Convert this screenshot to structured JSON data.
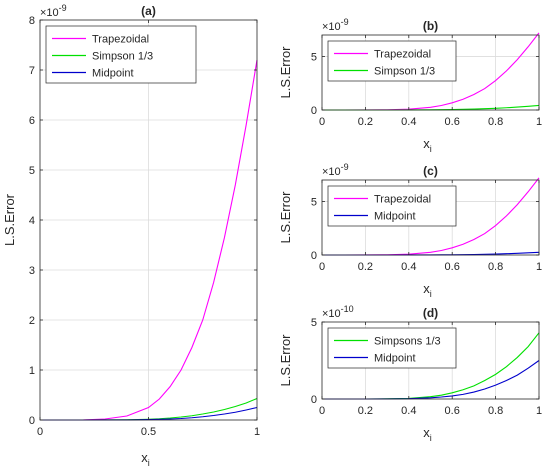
{
  "chart_data": [
    {
      "type": "line",
      "title": "(a)",
      "xlabel": "x",
      "xlabel_sub": "i",
      "ylabel": "L.S.Error",
      "exponent_label": "×10",
      "exponent_power": "-9",
      "xlim": [
        0,
        1
      ],
      "ylim": [
        0,
        8
      ],
      "x_ticks": [
        0,
        0.5,
        1
      ],
      "x_tick_labels": [
        "0",
        "0.5",
        "1"
      ],
      "y_ticks": [
        0,
        1,
        2,
        3,
        4,
        5,
        6,
        7,
        8
      ],
      "y_tick_labels": [
        "0",
        "1",
        "2",
        "3",
        "4",
        "5",
        "6",
        "7",
        "8"
      ],
      "grid": true,
      "legend_position": "top-left",
      "x": [
        0,
        0.1,
        0.2,
        0.3,
        0.4,
        0.5,
        0.55,
        0.6,
        0.65,
        0.7,
        0.75,
        0.8,
        0.85,
        0.9,
        0.95,
        1.0
      ],
      "series": [
        {
          "name": "Trapezoidal",
          "color": "#ff00ff",
          "values": [
            0,
            0.0,
            0.002,
            0.02,
            0.08,
            0.25,
            0.42,
            0.67,
            1.0,
            1.45,
            2.0,
            2.75,
            3.65,
            4.7,
            5.9,
            7.2
          ]
        },
        {
          "name": "Simpson 1/3",
          "color": "#00e000",
          "values": [
            0,
            0,
            0,
            0.001,
            0.004,
            0.015,
            0.025,
            0.04,
            0.06,
            0.085,
            0.12,
            0.16,
            0.21,
            0.27,
            0.34,
            0.43
          ]
        },
        {
          "name": "Midpoint",
          "color": "#0000cc",
          "values": [
            0,
            0,
            0,
            0.0005,
            0.002,
            0.008,
            0.013,
            0.02,
            0.03,
            0.045,
            0.065,
            0.09,
            0.12,
            0.155,
            0.2,
            0.25
          ]
        }
      ]
    },
    {
      "type": "line",
      "title": "(b)",
      "xlabel": "x",
      "xlabel_sub": "i",
      "ylabel": "L.S.Error",
      "exponent_label": "×10",
      "exponent_power": "-9",
      "xlim": [
        0,
        1
      ],
      "ylim": [
        0,
        7
      ],
      "x_ticks": [
        0,
        0.2,
        0.4,
        0.6,
        0.8,
        1
      ],
      "x_tick_labels": [
        "0",
        "0.2",
        "0.4",
        "0.6",
        "0.8",
        "1"
      ],
      "y_ticks": [
        0,
        5
      ],
      "y_tick_labels": [
        "0",
        "5"
      ],
      "grid": true,
      "legend_position": "top-left",
      "x": [
        0,
        0.1,
        0.2,
        0.3,
        0.4,
        0.5,
        0.55,
        0.6,
        0.65,
        0.7,
        0.75,
        0.8,
        0.85,
        0.9,
        0.95,
        1.0
      ],
      "series": [
        {
          "name": "Trapezoidal",
          "color": "#ff00ff",
          "values": [
            0,
            0.0,
            0.002,
            0.02,
            0.08,
            0.25,
            0.42,
            0.67,
            1.0,
            1.45,
            2.0,
            2.75,
            3.65,
            4.7,
            5.9,
            7.2
          ]
        },
        {
          "name": "Simpson 1/3",
          "color": "#00e000",
          "values": [
            0,
            0,
            0,
            0.001,
            0.004,
            0.015,
            0.025,
            0.04,
            0.06,
            0.085,
            0.12,
            0.16,
            0.21,
            0.27,
            0.34,
            0.43
          ]
        }
      ]
    },
    {
      "type": "line",
      "title": "(c)",
      "xlabel": "x",
      "xlabel_sub": "i",
      "ylabel": "L.S.Error",
      "exponent_label": "×10",
      "exponent_power": "-9",
      "xlim": [
        0,
        1
      ],
      "ylim": [
        0,
        7
      ],
      "x_ticks": [
        0,
        0.2,
        0.4,
        0.6,
        0.8,
        1
      ],
      "x_tick_labels": [
        "0",
        "0.2",
        "0.4",
        "0.6",
        "0.8",
        "1"
      ],
      "y_ticks": [
        0,
        5
      ],
      "y_tick_labels": [
        "0",
        "5"
      ],
      "grid": true,
      "legend_position": "top-left",
      "x": [
        0,
        0.1,
        0.2,
        0.3,
        0.4,
        0.5,
        0.55,
        0.6,
        0.65,
        0.7,
        0.75,
        0.8,
        0.85,
        0.9,
        0.95,
        1.0
      ],
      "series": [
        {
          "name": "Trapezoidal",
          "color": "#ff00ff",
          "values": [
            0,
            0.0,
            0.002,
            0.02,
            0.08,
            0.25,
            0.42,
            0.67,
            1.0,
            1.45,
            2.0,
            2.75,
            3.65,
            4.7,
            5.9,
            7.2
          ]
        },
        {
          "name": "Midpoint",
          "color": "#0000cc",
          "values": [
            0,
            0,
            0,
            0.0005,
            0.002,
            0.008,
            0.013,
            0.02,
            0.03,
            0.045,
            0.065,
            0.09,
            0.12,
            0.155,
            0.2,
            0.25
          ]
        }
      ]
    },
    {
      "type": "line",
      "title": "(d)",
      "xlabel": "x",
      "xlabel_sub": "i",
      "ylabel": "L.S.Error",
      "exponent_label": "×10",
      "exponent_power": "-10",
      "xlim": [
        0,
        1
      ],
      "ylim": [
        0,
        5
      ],
      "x_ticks": [
        0,
        0.2,
        0.4,
        0.6,
        0.8,
        1
      ],
      "x_tick_labels": [
        "0",
        "0.2",
        "0.4",
        "0.6",
        "0.8",
        "1"
      ],
      "y_ticks": [
        0,
        5
      ],
      "y_tick_labels": [
        "0",
        "5"
      ],
      "grid": true,
      "legend_position": "top-left",
      "x": [
        0,
        0.1,
        0.2,
        0.3,
        0.4,
        0.5,
        0.55,
        0.6,
        0.65,
        0.7,
        0.75,
        0.8,
        0.85,
        0.9,
        0.95,
        1.0
      ],
      "series": [
        {
          "name": "Simpsons 1/3",
          "color": "#00e000",
          "values": [
            0,
            0,
            0,
            0.01,
            0.04,
            0.15,
            0.25,
            0.4,
            0.6,
            0.85,
            1.2,
            1.6,
            2.1,
            2.7,
            3.4,
            4.3
          ]
        },
        {
          "name": "Midpoint",
          "color": "#0000cc",
          "values": [
            0,
            0,
            0,
            0.005,
            0.02,
            0.08,
            0.13,
            0.2,
            0.3,
            0.45,
            0.65,
            0.9,
            1.2,
            1.55,
            2.0,
            2.5
          ]
        }
      ]
    }
  ]
}
